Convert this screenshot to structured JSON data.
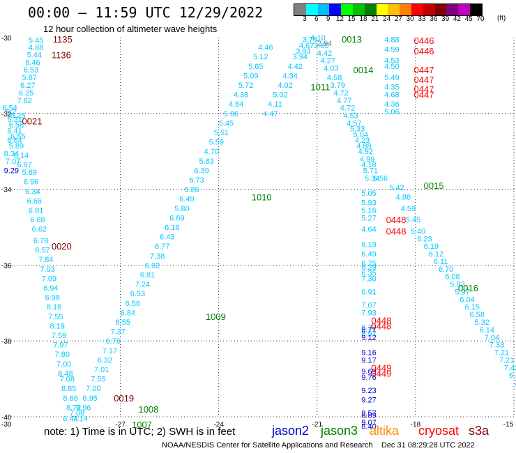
{
  "title": "00:00 – 11:59 UTC 12/29/2022",
  "subtitle": "12 hour collection of altimeter wave heights",
  "colorbar": {
    "ticks": [
      "3",
      "6",
      "9",
      "12",
      "15",
      "18",
      "21",
      "24",
      "27",
      "30",
      "33",
      "36",
      "39",
      "42",
      "45",
      "70"
    ],
    "unit": "(ft)",
    "colors": [
      "#808080",
      "#00ffff",
      "#00bfff",
      "#0000ff",
      "#00ff00",
      "#00c000",
      "#008000",
      "#ffff00",
      "#ffc000",
      "#ff8000",
      "#ff0000",
      "#c00000",
      "#800000",
      "#800080",
      "#c000c0",
      "#000000"
    ]
  },
  "axes": {
    "lat_labels": [
      "-30",
      "-32",
      "-34",
      "-36",
      "-38",
      "-40"
    ],
    "lon_labels": [
      "-30",
      "-27",
      "-24",
      "-21",
      "-18",
      "-15"
    ]
  },
  "footer": {
    "note": "note:  1) Time is in UTC;  2) SWH is in feet",
    "credit": "NOAA/NESDIS Center for Satellite Applications and Research    Dec 31 08:29:28 UTC 2022"
  },
  "legend": [
    {
      "name": "jason2",
      "color": "#0000cc"
    },
    {
      "name": "jason3",
      "color": "#008000"
    },
    {
      "name": "altika",
      "color": "#ff8c00"
    },
    {
      "name": "cryosat",
      "color": "#ff0000"
    },
    {
      "name": "s3a",
      "color": "#800000"
    }
  ],
  "times": [
    {
      "t": "1135",
      "lon": -29.06,
      "lat": -30.04,
      "color": "#800000"
    },
    {
      "t": "1136",
      "lon": -29.1,
      "lat": -30.45,
      "color": "#800000"
    },
    {
      "t": "0021",
      "lon": -30.0,
      "lat": -32.2,
      "color": "#800000"
    },
    {
      "t": "0020",
      "lon": -29.1,
      "lat": -35.5,
      "color": "#800000"
    },
    {
      "t": "0019",
      "lon": -27.2,
      "lat": -39.5,
      "color": "#800000"
    },
    {
      "t": "1008",
      "lon": -26.45,
      "lat": -39.8,
      "color": "#008000"
    },
    {
      "t": "1007",
      "lon": -26.65,
      "lat": -40.2,
      "color": "#008000"
    },
    {
      "t": "1009",
      "lon": -24.4,
      "lat": -37.35,
      "color": "#008000"
    },
    {
      "t": "1010",
      "lon": -23.0,
      "lat": -34.2,
      "color": "#008000"
    },
    {
      "t": "1011",
      "lon": -21.2,
      "lat": -31.3,
      "color": "#008000"
    },
    {
      "t": "0013",
      "lon": -20.25,
      "lat": -30.04,
      "color": "#008000"
    },
    {
      "t": "0014",
      "lon": -19.9,
      "lat": -30.85,
      "color": "#008000"
    },
    {
      "t": "0015",
      "lon": -17.75,
      "lat": -33.9,
      "color": "#008000"
    },
    {
      "t": "0016",
      "lon": -16.7,
      "lat": -36.6,
      "color": "#008000"
    },
    {
      "t": "0446",
      "lon": -18.05,
      "lat": -30.07,
      "color": "#ff0000"
    },
    {
      "t": "0446",
      "lon": -18.05,
      "lat": -30.35,
      "color": "#ff0000"
    },
    {
      "t": "0447",
      "lon": -18.05,
      "lat": -30.85,
      "color": "#ff0000"
    },
    {
      "t": "0447",
      "lon": -18.05,
      "lat": -31.1,
      "color": "#ff0000"
    },
    {
      "t": "0447",
      "lon": -18.05,
      "lat": -31.35,
      "color": "#ff0000"
    },
    {
      "t": "0447",
      "lon": -18.05,
      "lat": -31.5,
      "color": "#ff0000"
    },
    {
      "t": "0448",
      "lon": -18.9,
      "lat": -34.8,
      "color": "#ff0000"
    },
    {
      "t": "0448",
      "lon": -18.9,
      "lat": -35.1,
      "color": "#ff0000"
    },
    {
      "t": "0448",
      "lon": -19.35,
      "lat": -37.45,
      "color": "#ff0000"
    },
    {
      "t": "0448",
      "lon": -19.35,
      "lat": -37.6,
      "color": "#ff0000"
    },
    {
      "t": "0449",
      "lon": -19.35,
      "lat": -38.7,
      "color": "#ff0000"
    },
    {
      "t": "0449",
      "lon": -19.35,
      "lat": -38.85,
      "color": "#ff0000"
    }
  ],
  "tracks": [
    {
      "color": "#00c8ff",
      "pts": [
        [
          "5.45",
          -29.8,
          -30.06
        ],
        [
          "4.88",
          -29.8,
          -30.25
        ],
        [
          "5.44",
          -29.85,
          -30.45
        ],
        [
          "6.46",
          -29.9,
          -30.65
        ],
        [
          "6.53",
          -29.95,
          -30.85
        ],
        [
          "5.87",
          -30.0,
          -31.05
        ],
        [
          "6.27",
          -30.05,
          -31.25
        ],
        [
          "6.25",
          -30.1,
          -31.45
        ],
        [
          "7.62",
          -30.15,
          -31.65
        ],
        [
          "6.54",
          -30.6,
          -31.85
        ],
        [
          "5.2",
          -30.5,
          -31.95
        ],
        [
          "5.25",
          -30.35,
          -32.05
        ],
        [
          "5.31",
          -30.45,
          -32.15
        ],
        [
          "6.56",
          -30.4,
          -32.3
        ],
        [
          "6.41",
          -30.45,
          -32.45
        ],
        [
          "6.55",
          -30.35,
          -32.6
        ],
        [
          "6.64",
          -30.45,
          -32.7
        ],
        [
          "5.89",
          -30.4,
          -32.85
        ],
        [
          "8.34",
          -30.55,
          -33.05
        ],
        [
          "7.07",
          -30.5,
          -33.25
        ],
        [
          "6.14",
          -30.25,
          -33.1
        ],
        [
          "6.97",
          -30.15,
          -33.35
        ],
        [
          "5.69",
          -30.0,
          -33.55
        ],
        [
          "6.96",
          -29.95,
          -33.8
        ],
        [
          "6.34",
          -29.9,
          -34.05
        ],
        [
          "6.66",
          -29.85,
          -34.3
        ],
        [
          "6.81",
          -29.8,
          -34.55
        ],
        [
          "6.88",
          -29.75,
          -34.8
        ],
        [
          "6.62",
          -29.7,
          -35.05
        ],
        [
          "6.78",
          -29.65,
          -35.35
        ],
        [
          "6.57",
          -29.6,
          -35.6
        ],
        [
          "7.84",
          -29.5,
          -35.85
        ],
        [
          "7.03",
          -29.45,
          -36.1
        ],
        [
          "7.09",
          -29.4,
          -36.35
        ],
        [
          "6.94",
          -29.35,
          -36.6
        ],
        [
          "6.98",
          -29.3,
          -36.85
        ],
        [
          "8.18",
          -29.25,
          -37.1
        ],
        [
          "7.55",
          -29.2,
          -37.35
        ],
        [
          "8.19",
          -29.15,
          -37.6
        ],
        [
          "7.59",
          -29.1,
          -37.85
        ],
        [
          "7.97",
          -29.05,
          -38.1
        ],
        [
          "7.80",
          -29.0,
          -38.35
        ],
        [
          "7.00",
          -28.95,
          -38.6
        ],
        [
          "8.48",
          -28.9,
          -38.85
        ],
        [
          "7.08",
          -28.85,
          -39.0
        ],
        [
          "8.65",
          -28.8,
          -39.25
        ],
        [
          "8.66",
          -28.75,
          -39.5
        ],
        [
          "8.72",
          -28.65,
          -39.75
        ],
        [
          "7.08",
          -28.55,
          -39.9
        ],
        [
          "6.44",
          -28.75,
          -40.05
        ],
        [
          "7.14",
          -28.45,
          -40.05
        ],
        [
          "6.96",
          -28.35,
          -39.75
        ],
        [
          "6.95",
          -28.15,
          -39.5
        ],
        [
          "7.00",
          -28.05,
          -39.25
        ],
        [
          "7.55",
          -27.9,
          -39.0
        ],
        [
          "7.01",
          -27.8,
          -38.75
        ],
        [
          "6.32",
          -27.7,
          -38.5
        ],
        [
          "7.17",
          -27.55,
          -38.25
        ],
        [
          "6.76",
          -27.45,
          -38.0
        ],
        [
          "7.37",
          -27.3,
          -37.75
        ],
        [
          "6.55",
          -27.15,
          -37.5
        ],
        [
          "6.84",
          -27.0,
          -37.25
        ],
        [
          "6.56",
          -26.85,
          -37.0
        ],
        [
          "6.53",
          -26.7,
          -36.75
        ],
        [
          "7.24",
          -26.55,
          -36.5
        ],
        [
          "6.81",
          -26.4,
          -36.25
        ],
        [
          "6.92",
          -26.25,
          -36.0
        ],
        [
          "7.38",
          -26.1,
          -35.75
        ],
        [
          "6.77",
          -25.95,
          -35.5
        ],
        [
          "6.43",
          -25.8,
          -35.25
        ],
        [
          "6.16",
          -25.65,
          -35.0
        ],
        [
          "6.69",
          -25.5,
          -34.75
        ],
        [
          "5.80",
          -25.35,
          -34.5
        ],
        [
          "6.49",
          -25.2,
          -34.25
        ],
        [
          "5.86",
          -25.05,
          -34.0
        ],
        [
          "6.73",
          -24.9,
          -33.75
        ],
        [
          "6.39",
          -24.75,
          -33.5
        ],
        [
          "5.83",
          -24.6,
          -33.25
        ],
        [
          "4.70",
          -24.45,
          -33.0
        ],
        [
          "5.59",
          -24.3,
          -32.75
        ],
        [
          "5.51",
          -24.15,
          -32.5
        ],
        [
          "5.45",
          -24.0,
          -32.25
        ],
        [
          "5.96",
          -23.85,
          -32.0
        ],
        [
          "4.84",
          -23.7,
          -31.75
        ],
        [
          "4.38",
          -23.55,
          -31.5
        ],
        [
          "5.72",
          -23.4,
          -31.25
        ],
        [
          "5.09",
          -23.25,
          -31.0
        ],
        [
          "5.65",
          -23.1,
          -30.75
        ],
        [
          "5.12",
          -22.95,
          -30.5
        ],
        [
          "4.46",
          -22.8,
          -30.25
        ],
        [
          "4.47",
          -22.65,
          -32.0
        ],
        [
          "4.11",
          -22.5,
          -31.75
        ],
        [
          "5.02",
          -22.35,
          -31.5
        ],
        [
          "4.02",
          -22.2,
          -31.25
        ],
        [
          "4.34",
          -22.05,
          -31.0
        ],
        [
          "4.42",
          -21.9,
          -30.75
        ],
        [
          "3.94",
          -21.75,
          -30.5
        ],
        [
          "3.93",
          -21.65,
          -30.35
        ],
        [
          "4.67",
          -21.55,
          -30.2
        ],
        [
          "3.76",
          -21.45,
          -30.05
        ]
      ]
    },
    {
      "color": "#00c8ff",
      "pts": [
        [
          "4.10",
          -21.2,
          -30.0
        ],
        [
          "3.65",
          -21.1,
          -30.2
        ],
        [
          "4.42",
          -21.0,
          -30.4
        ],
        [
          "4.27",
          -20.9,
          -30.6
        ],
        [
          "4.03",
          -20.8,
          -30.8
        ],
        [
          "4.58",
          -20.7,
          -31.05
        ],
        [
          "3.79",
          -20.6,
          -31.25
        ],
        [
          "4.72",
          -20.5,
          -31.45
        ],
        [
          "4.77",
          -20.4,
          -31.65
        ],
        [
          "4.72",
          -20.3,
          -31.85
        ],
        [
          "4.53",
          -20.2,
          -32.05
        ],
        [
          "4.57",
          -20.1,
          -32.25
        ],
        [
          "5.33",
          -20.0,
          -32.4
        ],
        [
          "5.04",
          -19.9,
          -32.55
        ],
        [
          "4.23",
          -19.85,
          -32.7
        ],
        [
          "4.88",
          -19.8,
          -32.85
        ],
        [
          "4.92",
          -19.75,
          -33.0
        ],
        [
          "4.99",
          -19.7,
          -33.2
        ],
        [
          "4.18",
          -19.65,
          -33.35
        ],
        [
          "5.71",
          -19.6,
          -33.5
        ],
        [
          "5.34",
          -19.55,
          -33.7
        ],
        [
          "5.56",
          -19.3,
          -33.7
        ],
        [
          "5.42",
          -18.8,
          -33.95
        ],
        [
          "4.88",
          -18.6,
          -34.2
        ],
        [
          "4.59",
          -18.45,
          -34.5
        ],
        [
          "5.45",
          -18.3,
          -34.8
        ],
        [
          "5.40",
          -18.15,
          -35.1
        ],
        [
          "6.23",
          -17.95,
          -35.3
        ],
        [
          "6.19",
          -17.75,
          -35.5
        ],
        [
          "6.12",
          -17.6,
          -35.7
        ],
        [
          "6.11",
          -17.45,
          -35.9
        ],
        [
          "6.70",
          -17.3,
          -36.1
        ],
        [
          "6.08",
          -17.1,
          -36.3
        ],
        [
          "5.82",
          -16.95,
          -36.5
        ],
        [
          "5.97",
          -16.8,
          -36.7
        ],
        [
          "6.04",
          -16.65,
          -36.9
        ],
        [
          "6.15",
          -16.5,
          -37.1
        ],
        [
          "6.58",
          -16.35,
          -37.3
        ],
        [
          "5.32",
          -16.2,
          -37.5
        ],
        [
          "6.14",
          -16.05,
          -37.7
        ],
        [
          "7.04",
          -15.9,
          -37.9
        ],
        [
          "7.33",
          -15.75,
          -38.1
        ],
        [
          "7.21",
          -15.6,
          -38.3
        ],
        [
          "7.21",
          -15.45,
          -38.5
        ],
        [
          "7.42",
          -15.3,
          -38.7
        ],
        [
          "6.83",
          -15.15,
          -38.9
        ],
        [
          "7.36",
          -15.0,
          -39.1
        ],
        [
          "7.85",
          -14.85,
          -39.3
        ],
        [
          "7.58",
          -14.7,
          -39.5
        ],
        [
          "8.62",
          -14.55,
          -39.7
        ],
        [
          "8.25",
          -14.4,
          -39.9
        ],
        [
          "7.6",
          -14.3,
          -40.0
        ]
      ]
    },
    {
      "color": "#00c8ff",
      "pts": [
        [
          "4.88",
          -18.95,
          -30.05
        ],
        [
          "4.59",
          -18.95,
          -30.3
        ],
        [
          "4.53",
          -18.95,
          -30.6
        ],
        [
          "4.50",
          -18.95,
          -30.75
        ],
        [
          "5.49",
          -18.95,
          -31.05
        ],
        [
          "4.35",
          -18.95,
          -31.3
        ],
        [
          "4.68",
          -18.95,
          -31.5
        ],
        [
          "4.36",
          -18.95,
          -31.75
        ],
        [
          "5.06",
          -18.95,
          -31.95
        ]
      ]
    },
    {
      "color": "#00c8ff",
      "pts": [
        [
          "5.05",
          -19.65,
          -34.1
        ],
        [
          "5.93",
          -19.65,
          -34.35
        ],
        [
          "5.16",
          -19.65,
          -34.55
        ],
        [
          "5.27",
          -19.65,
          -34.75
        ],
        [
          "4.64",
          -19.65,
          -35.05
        ],
        [
          "6.19",
          -19.65,
          -35.45
        ],
        [
          "6.49",
          -19.65,
          -35.7
        ],
        [
          "6.75",
          -19.65,
          -35.95
        ],
        [
          "6.29",
          -19.65,
          -36.05
        ],
        [
          "6.35",
          -19.65,
          -36.2
        ],
        [
          "7.30",
          -19.65,
          -36.35
        ],
        [
          "6.91",
          -19.65,
          -36.7
        ],
        [
          "7.07",
          -19.65,
          -37.05
        ],
        [
          "7.93",
          -19.65,
          -37.25
        ],
        [
          "8.77",
          -19.65,
          -37.65
        ],
        [
          "8.97",
          -19.65,
          -37.8
        ]
      ]
    },
    {
      "color": "#0000cc",
      "pts": [
        [
          "8.77",
          -19.65,
          -37.7
        ],
        [
          "9.12",
          -19.65,
          -37.9
        ],
        [
          "9.16",
          -19.65,
          -38.3
        ],
        [
          "9.17",
          -19.65,
          -38.5
        ],
        [
          "9.69",
          -19.65,
          -38.8
        ],
        [
          "9.76",
          -19.65,
          -38.95
        ],
        [
          "9.23",
          -19.65,
          -39.3
        ],
        [
          "9.27",
          -19.65,
          -39.55
        ],
        [
          "8.57",
          -19.65,
          -39.9
        ],
        [
          "8.89",
          -19.65,
          -39.95
        ],
        [
          "9.07",
          -19.65,
          -40.15
        ],
        [
          "8.40",
          -19.65,
          -40.25
        ],
        [
          "9.29",
          -30.55,
          -33.5
        ]
      ]
    },
    {
      "color": "#808080",
      "pts": [
        [
          "2.94",
          -21.0,
          -30.15
        ]
      ]
    }
  ]
}
